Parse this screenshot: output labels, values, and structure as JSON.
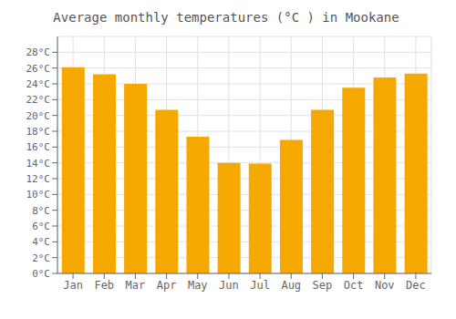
{
  "chart_data": {
    "type": "bar",
    "title": "Average monthly temperatures (°C ) in Mookane",
    "categories": [
      "Jan",
      "Feb",
      "Mar",
      "Apr",
      "May",
      "Jun",
      "Jul",
      "Aug",
      "Sep",
      "Oct",
      "Nov",
      "Dec"
    ],
    "values": [
      26.1,
      25.2,
      24.0,
      20.7,
      17.3,
      14.0,
      13.9,
      16.9,
      20.7,
      23.5,
      24.8,
      25.3
    ],
    "color": "#F5A800",
    "ylim": [
      0,
      30
    ],
    "yticks": [
      {
        "value": 0,
        "label": "0°C"
      },
      {
        "value": 2,
        "label": "2°C"
      },
      {
        "value": 4,
        "label": "4°C"
      },
      {
        "value": 6,
        "label": "6°C"
      },
      {
        "value": 8,
        "label": "8°C"
      },
      {
        "value": 10,
        "label": "10°C"
      },
      {
        "value": 12,
        "label": "12°C"
      },
      {
        "value": 14,
        "label": "14°C"
      },
      {
        "value": 16,
        "label": "16°C"
      },
      {
        "value": 18,
        "label": "18°C"
      },
      {
        "value": 20,
        "label": "20°C"
      },
      {
        "value": 22,
        "label": "22°C"
      },
      {
        "value": 24,
        "label": "24°C"
      },
      {
        "value": 26,
        "label": "26°C"
      },
      {
        "value": 28,
        "label": "28°C"
      }
    ],
    "grid": true
  }
}
